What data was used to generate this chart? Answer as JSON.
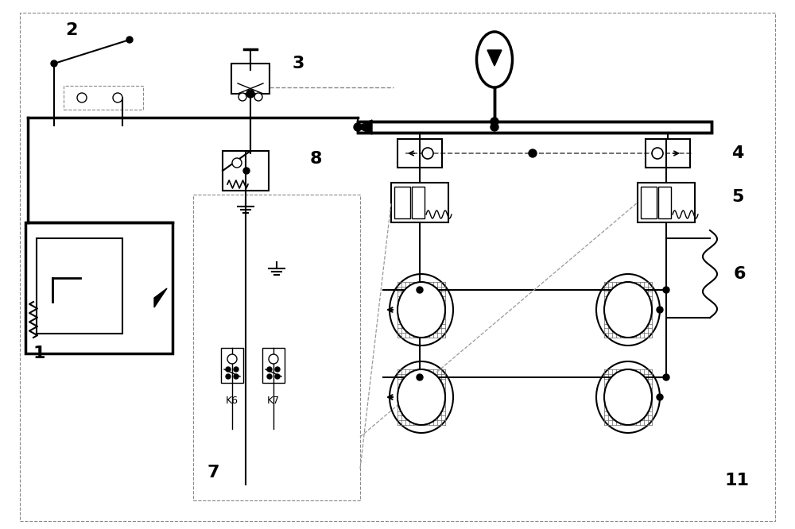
{
  "bg_color": "#ffffff",
  "line_color": "#000000",
  "dashed_color": "#888888",
  "label_2": "2",
  "label_3": "3",
  "label_4": "4",
  "label_5": "5",
  "label_6": "6",
  "label_7": "7",
  "label_8": "8",
  "label_1": "1",
  "label_11": "11",
  "label_K6": "K6",
  "label_K7": "K7",
  "figsize": [
    10.0,
    6.66
  ],
  "dpi": 100
}
